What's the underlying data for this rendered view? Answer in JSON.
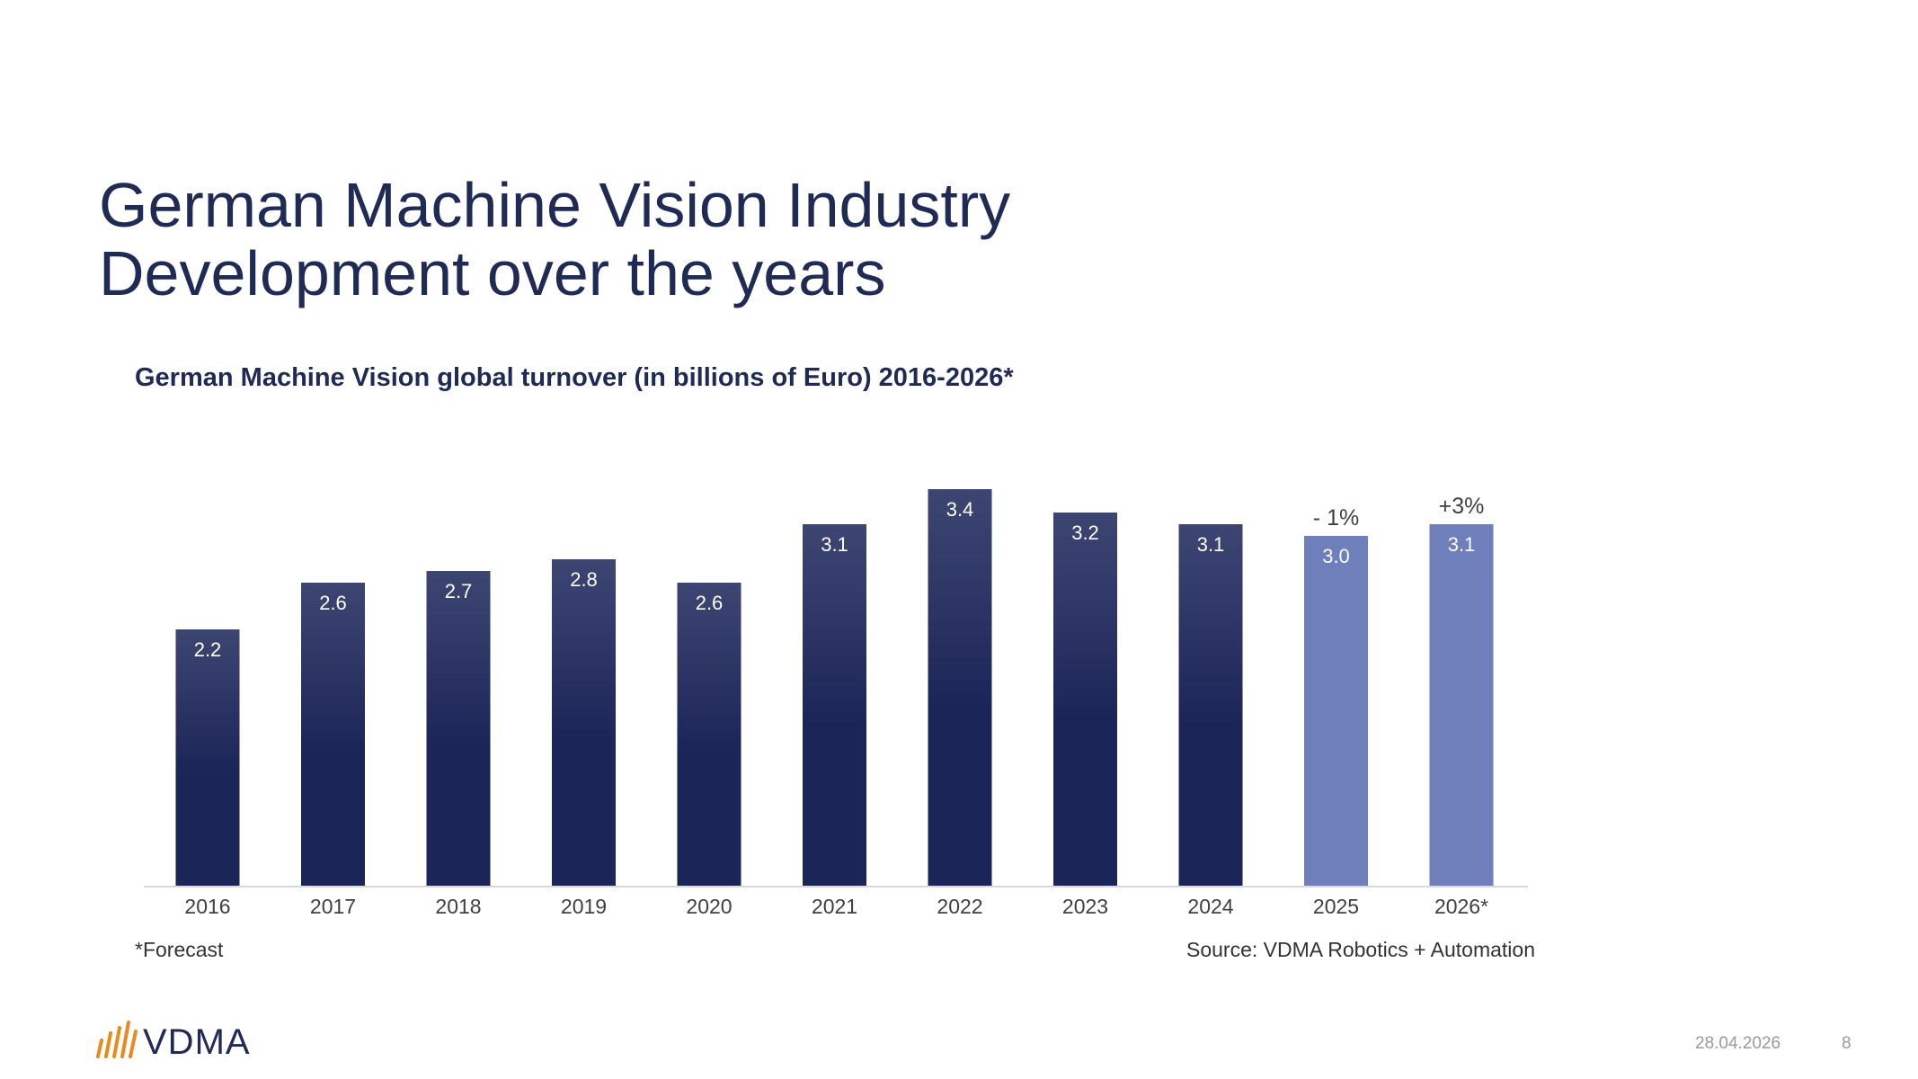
{
  "slide": {
    "title_line1": "German Machine Vision Industry",
    "title_line2": "Development over the years",
    "footnote": "*Forecast",
    "source": "Source: VDMA Robotics + Automation",
    "logo_text": "VDMA",
    "date": "28.04.2026",
    "page_number": "8"
  },
  "colors": {
    "title": "#1f2a55",
    "bar_actual_top": "#3d4672",
    "bar_actual_bottom": "#1c2558",
    "bar_forecast": "#6e7fbb",
    "logo_accent": "#e88a1d"
  },
  "icons": {
    "logo": "vdma-logo-icon"
  },
  "chart_data": {
    "type": "bar",
    "title": "German Machine Vision global turnover (in billions of Euro) 2016-2026*",
    "categories": [
      "2016",
      "2017",
      "2018",
      "2019",
      "2020",
      "2021",
      "2022",
      "2023",
      "2024",
      "2025",
      "2026*"
    ],
    "values": [
      2.2,
      2.6,
      2.7,
      2.8,
      2.6,
      3.1,
      3.4,
      3.2,
      3.1,
      3.0,
      3.1
    ],
    "value_labels": [
      "2.2",
      "2.6",
      "2.7",
      "2.8",
      "2.6",
      "3.1",
      "3.4",
      "3.2",
      "3.1",
      "3.0",
      "3.1"
    ],
    "forecast": [
      false,
      false,
      false,
      false,
      false,
      false,
      false,
      false,
      false,
      true,
      true
    ],
    "annotations": [
      "",
      "",
      "",
      "",
      "",
      "",
      "",
      "",
      "",
      "- 1%",
      "+3%"
    ],
    "xlabel": "",
    "ylabel": "",
    "ylim": [
      0,
      3.4
    ],
    "grid": false,
    "legend": "none"
  }
}
